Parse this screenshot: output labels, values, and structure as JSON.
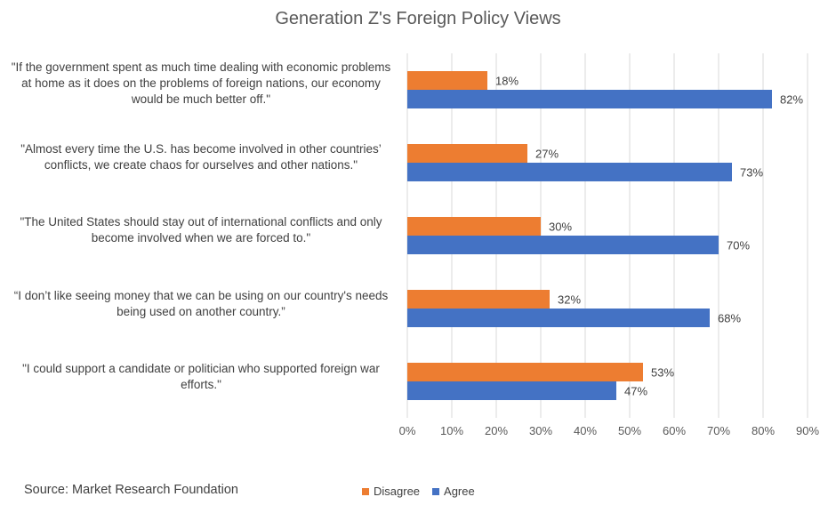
{
  "chart_data": {
    "type": "bar",
    "orientation": "horizontal",
    "title": "Generation Z's Foreign Policy Views",
    "categories": [
      "\"If the government spent as much time dealing with economic problems at home as it does on the problems of foreign nations, our economy would be much better off.\"",
      "\"Almost every time the U.S. has become involved in other countries’ conflicts, we create chaos for ourselves and other nations.\"",
      "\"The United States should stay out of international conflicts and only become involved when we are forced to.\"",
      "“I don’t like seeing money that we can be using on our country's needs being used on another country.”",
      "\"I could support a candidate or politician who supported foreign war efforts.\""
    ],
    "series": [
      {
        "name": "Disagree",
        "color": "#ED7D31",
        "values": [
          18,
          27,
          30,
          32,
          53
        ],
        "labels": [
          "18%",
          "27%",
          "30%",
          "32%",
          "53%"
        ]
      },
      {
        "name": "Agree",
        "color": "#4472C4",
        "values": [
          82,
          73,
          70,
          68,
          47
        ],
        "labels": [
          "82%",
          "73%",
          "70%",
          "68%",
          "47%"
        ]
      }
    ],
    "xlim": [
      0,
      90
    ],
    "x_ticks": [
      "0%",
      "10%",
      "20%",
      "30%",
      "40%",
      "50%",
      "60%",
      "70%",
      "80%",
      "90%"
    ],
    "grid": true,
    "legend_position": "bottom"
  },
  "source": "Source: Market Research Foundation"
}
